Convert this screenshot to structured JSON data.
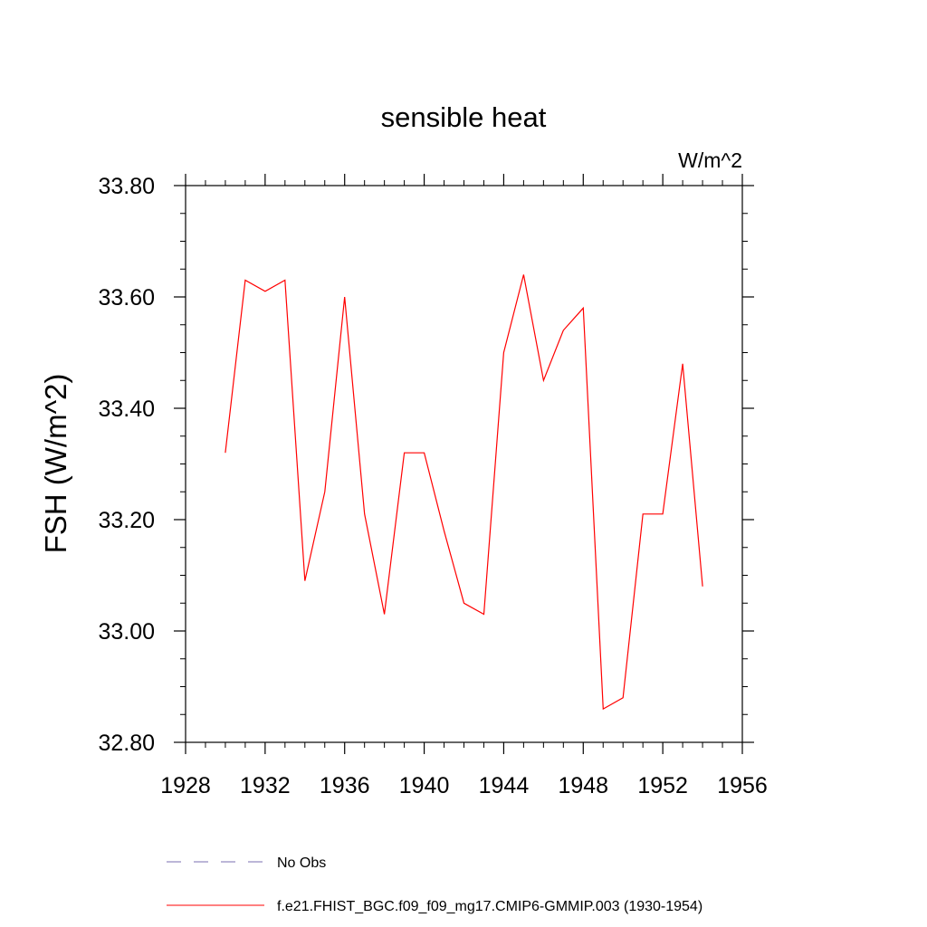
{
  "chart_data": {
    "type": "line",
    "title": "sensible heat",
    "units_label": "W/m^2",
    "ylabel": "FSH  (W/m^2)",
    "xlabel": "",
    "xlim": [
      1928,
      1956
    ],
    "ylim": [
      32.8,
      33.8
    ],
    "x_ticks": [
      "1928",
      "1932",
      "1936",
      "1940",
      "1944",
      "1948",
      "1952",
      "1956"
    ],
    "y_ticks": [
      "32.80",
      "33.00",
      "33.20",
      "33.40",
      "33.60",
      "33.80"
    ],
    "grid": false,
    "legend_position": "bottom-left",
    "legend": [
      {
        "label": "No Obs",
        "style": "dashed",
        "color": "#7a6fb0"
      },
      {
        "label": "f.e21.FHIST_BGC.f09_f09_mg17.CMIP6-GMMIP.003 (1930-1954)",
        "style": "solid",
        "color": "#ff0000"
      }
    ],
    "series": [
      {
        "color": "#ff0000",
        "x": [
          1930,
          1931,
          1932,
          1933,
          1934,
          1935,
          1936,
          1937,
          1938,
          1939,
          1940,
          1941,
          1942,
          1943,
          1944,
          1945,
          1946,
          1947,
          1948,
          1949,
          1950,
          1951,
          1952,
          1953,
          1954
        ],
        "y": [
          33.32,
          33.63,
          33.61,
          33.63,
          33.09,
          33.25,
          33.6,
          33.21,
          33.03,
          33.32,
          33.32,
          33.18,
          33.05,
          33.03,
          33.5,
          33.64,
          33.45,
          33.54,
          33.58,
          32.86,
          32.88,
          33.21,
          33.21,
          33.48,
          33.08
        ]
      }
    ]
  }
}
